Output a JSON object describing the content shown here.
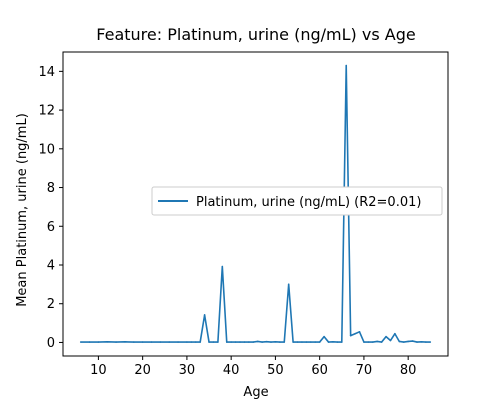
{
  "chart_data": {
    "type": "line",
    "title": "Feature: Platinum, urine (ng/mL) vs Age",
    "xlabel": "Age",
    "ylabel": "Mean Platinum, urine (ng/mL)",
    "xlim": [
      2,
      89
    ],
    "ylim": [
      -0.7,
      15.0
    ],
    "xticks": [
      10,
      20,
      30,
      40,
      50,
      60,
      70,
      80
    ],
    "yticks": [
      0,
      2,
      4,
      6,
      8,
      10,
      12,
      14
    ],
    "grid": false,
    "legend_position": "center-right",
    "series": [
      {
        "name": "Platinum, urine (ng/mL) (R2=0.01)",
        "color": "#1f77b4",
        "x": [
          6,
          8,
          10,
          12,
          14,
          16,
          18,
          20,
          22,
          24,
          26,
          28,
          30,
          31,
          32,
          33,
          34,
          35,
          36,
          37,
          38,
          39,
          40,
          41,
          42,
          43,
          44,
          45,
          46,
          47,
          48,
          49,
          50,
          51,
          52,
          53,
          54,
          55,
          56,
          57,
          58,
          59,
          60,
          61,
          62,
          63,
          64,
          65,
          66,
          67,
          68,
          69,
          70,
          71,
          72,
          73,
          74,
          75,
          76,
          77,
          78,
          79,
          80,
          81,
          82,
          83,
          84,
          85
        ],
        "y": [
          0.02,
          0.02,
          0.02,
          0.03,
          0.02,
          0.03,
          0.02,
          0.02,
          0.02,
          0.02,
          0.02,
          0.02,
          0.02,
          0.02,
          0.02,
          0.02,
          1.42,
          0.02,
          0.02,
          0.02,
          3.92,
          0.02,
          0.02,
          0.02,
          0.02,
          0.02,
          0.02,
          0.02,
          0.05,
          0.02,
          0.04,
          0.02,
          0.03,
          0.02,
          0.02,
          3.0,
          0.02,
          0.02,
          0.02,
          0.02,
          0.02,
          0.02,
          0.02,
          0.3,
          0.02,
          0.03,
          0.02,
          0.02,
          14.3,
          0.35,
          0.45,
          0.55,
          0.02,
          0.02,
          0.02,
          0.05,
          0.02,
          0.3,
          0.1,
          0.45,
          0.05,
          0.02,
          0.05,
          0.07,
          0.02,
          0.03,
          0.02,
          0.02
        ]
      }
    ]
  }
}
